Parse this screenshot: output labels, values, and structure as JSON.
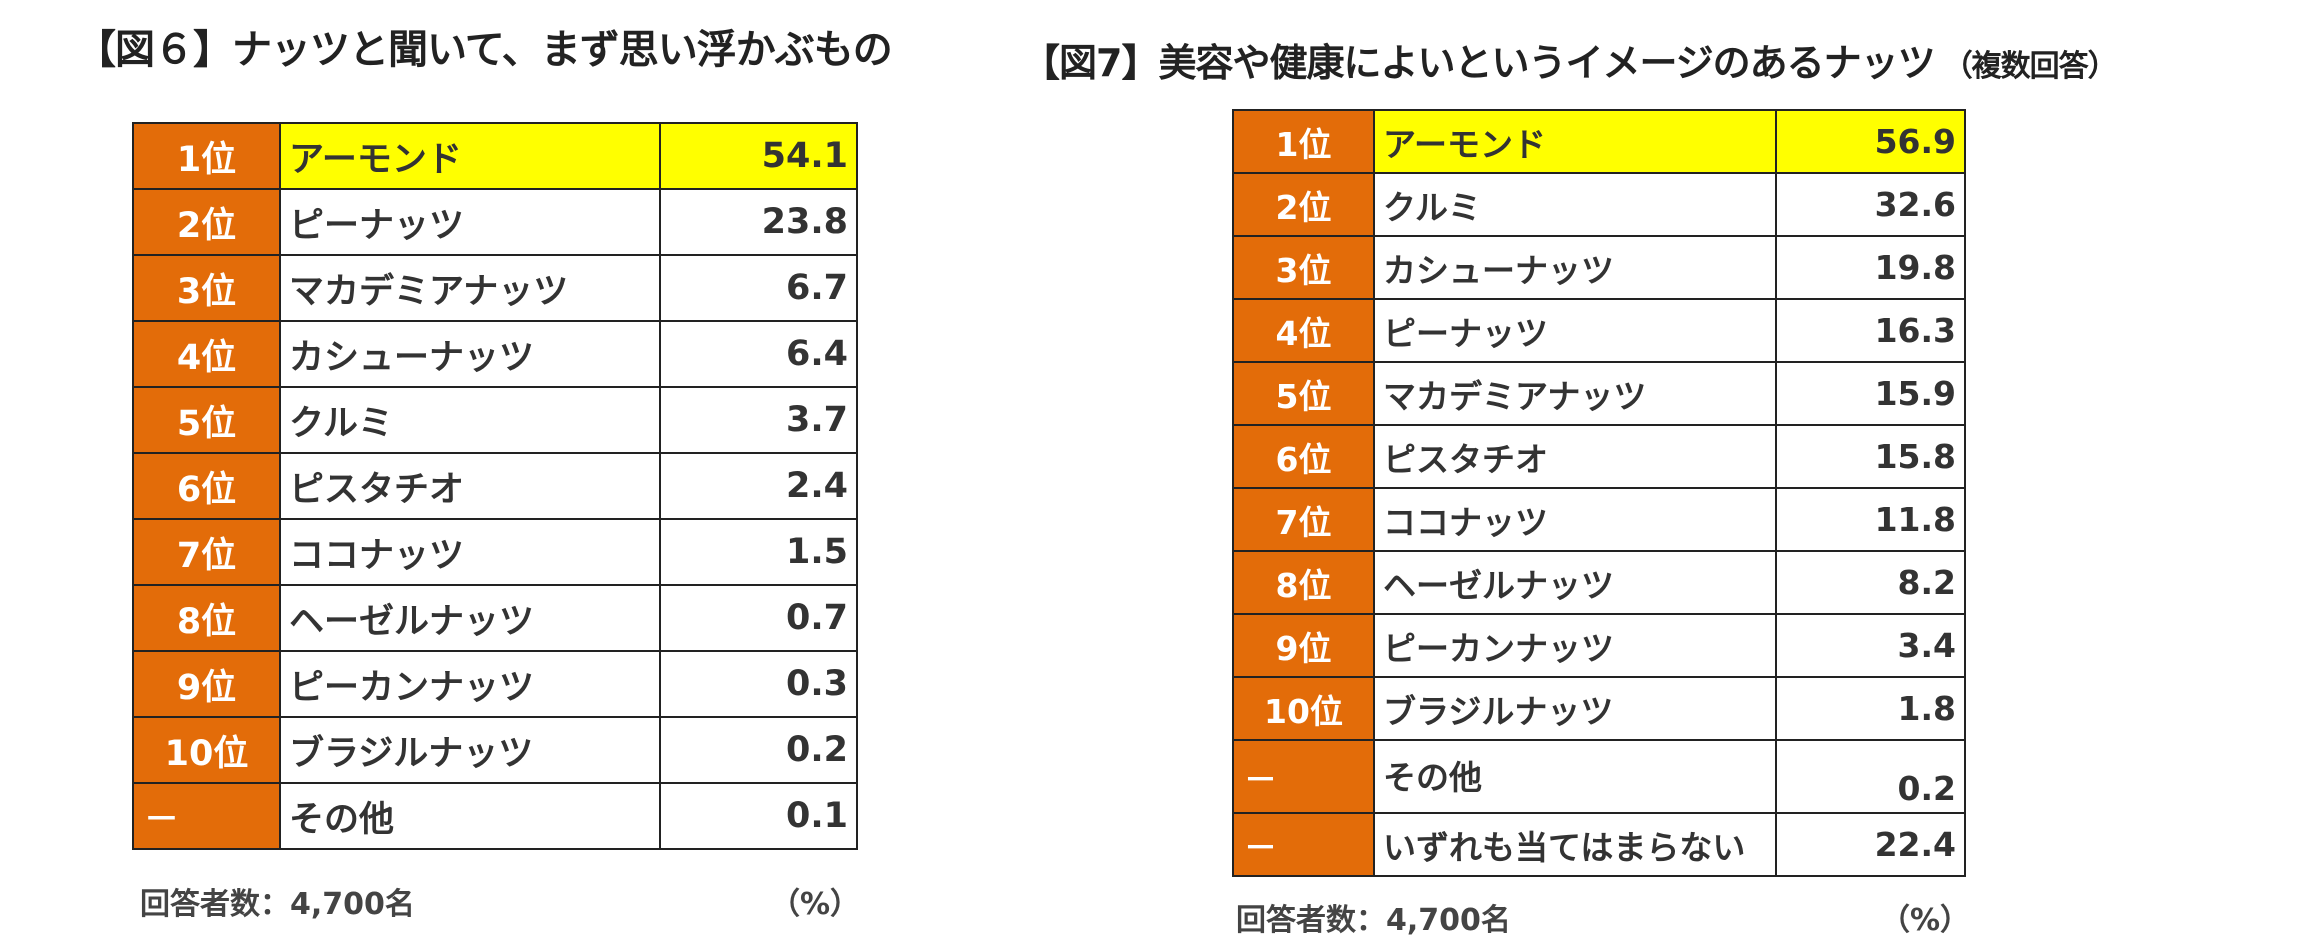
{
  "figure6": {
    "title": "【図６】ナッツと聞いて、まず思い浮かぶもの",
    "rows": [
      {
        "rank": "1位",
        "name": "アーモンド",
        "value": "54.1"
      },
      {
        "rank": "2位",
        "name": "ピーナッツ",
        "value": "23.8"
      },
      {
        "rank": "3位",
        "name": "マカデミアナッツ",
        "value": "6.7"
      },
      {
        "rank": "4位",
        "name": "カシューナッツ",
        "value": "6.4"
      },
      {
        "rank": "5位",
        "name": "クルミ",
        "value": "3.7"
      },
      {
        "rank": "6位",
        "name": "ピスタチオ",
        "value": "2.4"
      },
      {
        "rank": "7位",
        "name": "ココナッツ",
        "value": "1.5"
      },
      {
        "rank": "8位",
        "name": "ヘーゼルナッツ",
        "value": "0.7"
      },
      {
        "rank": "9位",
        "name": "ピーカンナッツ",
        "value": "0.3"
      },
      {
        "rank": "10位",
        "name": "ブラジルナッツ",
        "value": "0.2"
      },
      {
        "rank": "－",
        "name": "その他",
        "value": "0.1"
      }
    ],
    "respondents": "回答者数：4,700名",
    "unit": "（%）"
  },
  "figure7": {
    "title": "【図7】美容や健康によいというイメージのあるナッツ",
    "note": "（複数回答）",
    "rows": [
      {
        "rank": "1位",
        "name": "アーモンド",
        "value": "56.9"
      },
      {
        "rank": "2位",
        "name": "クルミ",
        "value": "32.6"
      },
      {
        "rank": "3位",
        "name": "カシューナッツ",
        "value": "19.8"
      },
      {
        "rank": "4位",
        "name": "ピーナッツ",
        "value": "16.3"
      },
      {
        "rank": "5位",
        "name": "マカデミアナッツ",
        "value": "15.9"
      },
      {
        "rank": "6位",
        "name": "ピスタチオ",
        "value": "15.8"
      },
      {
        "rank": "7位",
        "name": "ココナッツ",
        "value": "11.8"
      },
      {
        "rank": "8位",
        "name": "ヘーゼルナッツ",
        "value": "8.2"
      },
      {
        "rank": "9位",
        "name": "ピーカンナッツ",
        "value": "3.4"
      },
      {
        "rank": "10位",
        "name": "ブラジルナッツ",
        "value": "1.8"
      },
      {
        "rank": "－",
        "name": "その他",
        "value": "0.2"
      },
      {
        "rank": "－",
        "name": "いずれも当てはまらない",
        "value": "22.4"
      }
    ],
    "respondents": "回答者数：4,700名",
    "unit": "（%）"
  },
  "colors": {
    "rank_cell": "#E36C09",
    "highlight": "#FFFF00",
    "border": "#222222",
    "text": "#333333"
  }
}
